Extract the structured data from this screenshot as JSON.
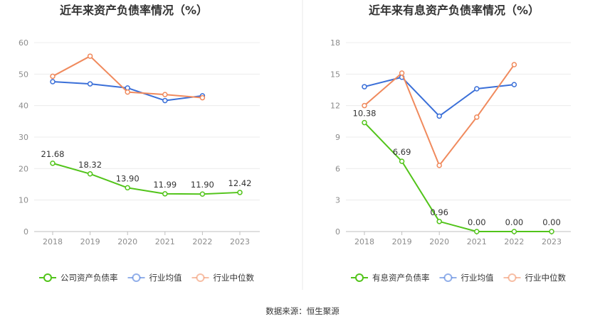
{
  "chart_data": [
    {
      "type": "line",
      "title": "近年来资产负债率情况（%）",
      "categories": [
        "2018",
        "2019",
        "2020",
        "2021",
        "2022",
        "2023"
      ],
      "ylim": [
        0,
        60
      ],
      "yticks": [
        0,
        10,
        20,
        30,
        40,
        50,
        60
      ],
      "grid": true,
      "legend": "bottom",
      "series": [
        {
          "name": "公司资产负债率",
          "color": "#52c41a",
          "values": [
            21.68,
            18.32,
            13.9,
            11.99,
            11.9,
            12.42
          ],
          "labels": [
            "21.68",
            "18.32",
            "13.90",
            "11.99",
            "11.90",
            "12.42"
          ],
          "primary": true
        },
        {
          "name": "行业均值",
          "color": "#3a6fd8",
          "values": [
            47.6,
            46.9,
            45.6,
            41.6,
            43.1,
            null
          ],
          "primary": false
        },
        {
          "name": "行业中位数",
          "color": "#f08a5d",
          "values": [
            49.3,
            55.7,
            44.3,
            43.5,
            42.5,
            null
          ],
          "primary": false
        }
      ]
    },
    {
      "type": "line",
      "title": "近年来有息资产负债率情况（%）",
      "categories": [
        "2018",
        "2019",
        "2020",
        "2021",
        "2022",
        "2023"
      ],
      "ylim": [
        0,
        18
      ],
      "yticks": [
        0,
        3,
        6,
        9,
        12,
        15,
        18
      ],
      "grid": true,
      "legend": "bottom",
      "series": [
        {
          "name": "有息资产负债率",
          "color": "#52c41a",
          "values": [
            10.38,
            6.69,
            0.96,
            0.0,
            0.0,
            0.0
          ],
          "labels": [
            "10.38",
            "6.69",
            "0.96",
            "0.00",
            "0.00",
            "0.00"
          ],
          "primary": true
        },
        {
          "name": "行业均值",
          "color": "#3a6fd8",
          "values": [
            13.8,
            14.7,
            11.0,
            13.6,
            14.0,
            null
          ],
          "primary": false
        },
        {
          "name": "行业中位数",
          "color": "#f08a5d",
          "values": [
            12.0,
            15.1,
            6.3,
            10.9,
            15.9,
            null
          ],
          "primary": false
        }
      ]
    }
  ],
  "footer": {
    "source": "数据来源：恒生聚源"
  }
}
